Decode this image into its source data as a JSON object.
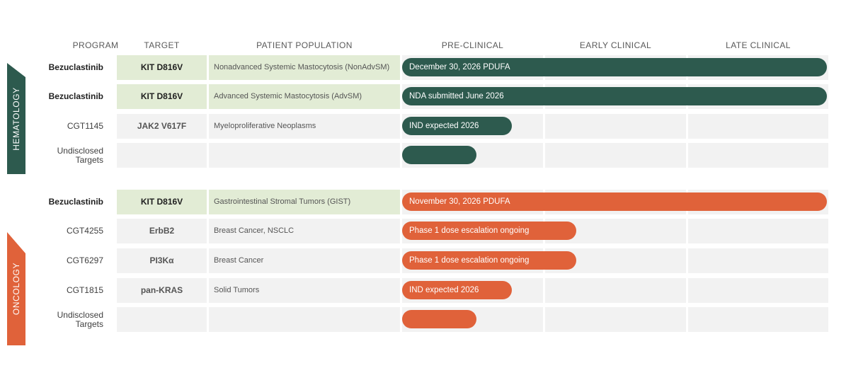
{
  "columns": {
    "program": "PROGRAM",
    "target": "TARGET",
    "population": "PATIENT POPULATION",
    "preclinical": "PRE-CLINICAL",
    "early": "EARLY CLINICAL",
    "late": "LATE CLINICAL"
  },
  "sections": {
    "hematology": "HEMATOLOGY",
    "oncology": "ONCOLOGY"
  },
  "colors": {
    "hematology": "#2d5a4e",
    "oncology": "#e0623a",
    "highlight_row": "#e2ecd5",
    "cell_bg": "#f2f2f2"
  },
  "rows": [
    {
      "program": "Bezuclastinib",
      "target": "KIT D816V",
      "population": "Nonadvanced Systemic Mastocytosis (NonAdvSM)",
      "status": "December 30, 2026 PDUFA",
      "section": "hematology",
      "stage": "late"
    },
    {
      "program": "Bezuclastinib",
      "target": "KIT D816V",
      "population": "Advanced Systemic Mastocytosis (AdvSM)",
      "status": "NDA submitted June 2026",
      "section": "hematology",
      "stage": "late"
    },
    {
      "program": "CGT1145",
      "target": "JAK2 V617F",
      "population": "Myeloproliferative Neoplasms",
      "status": "IND expected 2026",
      "section": "hematology",
      "stage": "pre-clinical"
    },
    {
      "program": "Undisclosed Targets",
      "target": "",
      "population": "",
      "status": "",
      "section": "hematology",
      "stage": "pre-clinical"
    },
    {
      "program": "Bezuclastinib",
      "target": "KIT D816V",
      "population": "Gastrointestinal Stromal Tumors (GIST)",
      "status": "November 30, 2026 PDUFA",
      "section": "oncology",
      "stage": "late"
    },
    {
      "program": "CGT4255",
      "target": "ErbB2",
      "population": "Breast Cancer, NSCLC",
      "status": "Phase 1 dose escalation ongoing",
      "section": "oncology",
      "stage": "early"
    },
    {
      "program": "CGT6297",
      "target": "PI3Kα",
      "population": "Breast Cancer",
      "status": "Phase 1 dose escalation ongoing",
      "section": "oncology",
      "stage": "early"
    },
    {
      "program": "CGT1815",
      "target": "pan-KRAS",
      "population": "Solid Tumors",
      "status": "IND expected 2026",
      "section": "oncology",
      "stage": "pre-clinical"
    },
    {
      "program": "Undisclosed Targets",
      "target": "",
      "population": "",
      "status": "",
      "section": "oncology",
      "stage": "pre-clinical"
    }
  ]
}
